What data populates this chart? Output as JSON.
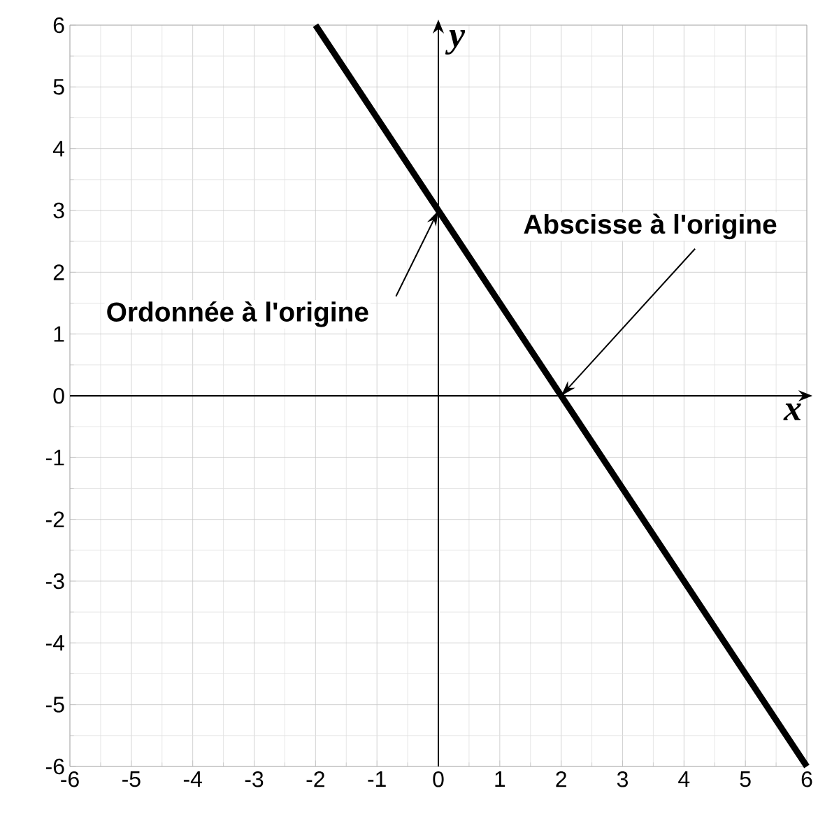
{
  "chart_data": {
    "type": "line",
    "xlabel": "x",
    "ylabel": "y",
    "x": [
      -2,
      6
    ],
    "series": [
      {
        "color": "#000000",
        "values": [
          6,
          -6
        ]
      }
    ],
    "xlim": [
      -6,
      6
    ],
    "ylim": [
      -6,
      6
    ],
    "xticks": [
      -6,
      -5,
      -4,
      -3,
      -2,
      -1,
      0,
      1,
      2,
      3,
      4,
      5,
      6
    ],
    "yticks": [
      -6,
      -5,
      -4,
      -3,
      -2,
      -1,
      0,
      1,
      2,
      3,
      4,
      5,
      6
    ],
    "grid": true,
    "marker": "none",
    "line_style": "solid",
    "annotations": [
      {
        "text": "Ordonnée à l'origine",
        "x": 0,
        "y": 3
      },
      {
        "text": "Abscisse à l'origine",
        "x": 2,
        "y": 0
      }
    ]
  }
}
